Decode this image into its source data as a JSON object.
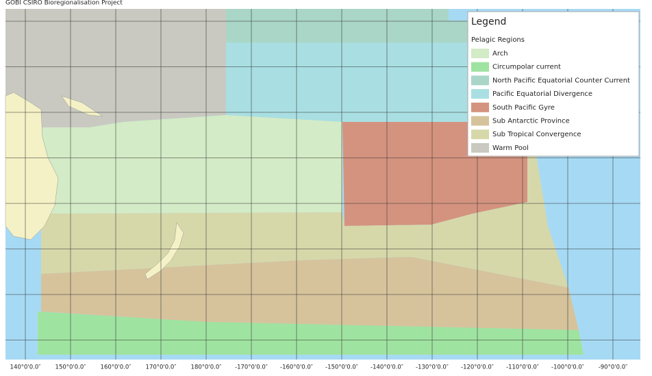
{
  "header": {
    "title": "GOBI CSIRO Bioregionalisation Project"
  },
  "legend": {
    "title": "Legend",
    "group": "Pelagic Regions",
    "items": [
      {
        "label": "Arch",
        "color": "#d3ebc6"
      },
      {
        "label": "Circumpolar current",
        "color": "#9fe3a0"
      },
      {
        "label": "North  Pacific Equatorial Counter Current",
        "color": "#a9d6c6"
      },
      {
        "label": "Pacific Equatorial Divergence",
        "color": "#a9dfe2"
      },
      {
        "label": "South Pacific Gyre",
        "color": "#d4937f"
      },
      {
        "label": "Sub Antarctic Province",
        "color": "#d6c39c"
      },
      {
        "label": "Sub Tropical Convergence",
        "color": "#d6d8aa"
      },
      {
        "label": "Warm Pool",
        "color": "#c9c9c1"
      }
    ]
  },
  "grid_labels": {
    "x": [
      "140°0'0.0″",
      "150°0'0.0″",
      "160°0'0.0″",
      "170°0'0.0″",
      "180°0'0.0″",
      "-170°0'0.0″",
      "-160°0'0.0″",
      "-150°0'0.0″",
      "-140°0'0.0″",
      "-130°0'0.0″",
      "-120°0'0.0″",
      "-110°0'0.0″",
      "-100°0'0.0″",
      "-90°0'0.0″"
    ]
  }
}
